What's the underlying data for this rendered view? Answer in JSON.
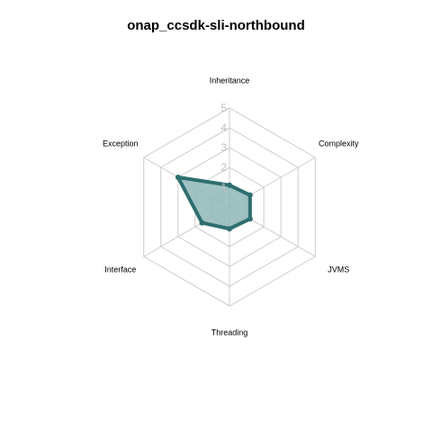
{
  "chart_data": {
    "type": "radar",
    "title": "onap_ccsdk-sli-northbound",
    "axes": [
      "Inheritance",
      "Complexity",
      "JVMS",
      "Threading",
      "Interface",
      "Exception"
    ],
    "rmin": 0,
    "rmax": 5,
    "ticks": [
      "1",
      "2",
      "3",
      "4",
      "5"
    ],
    "series": [
      {
        "values": [
          1.1,
          1.2,
          1.2,
          1.1,
          1.6,
          3.0
        ]
      }
    ],
    "colors": {
      "series": "#2e6e6e",
      "fill": "#8fb7b7",
      "grid": "#cccccc",
      "tick": "#bdbdbd"
    }
  }
}
